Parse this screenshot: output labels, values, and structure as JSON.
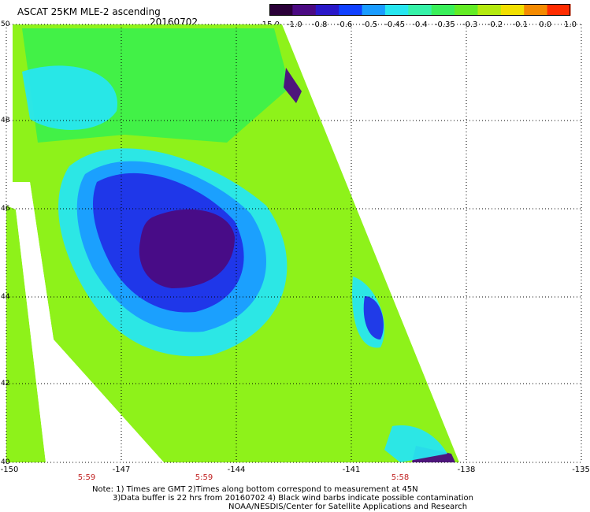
{
  "header": {
    "title": "ASCAT 25KM MLE-2 ascending",
    "date": "20160702"
  },
  "colorbar": {
    "ticks": [
      "-15.0",
      "-1.0",
      "-0.8",
      "-0.6",
      "-0.5",
      "-0.45",
      "-0.4",
      "-0.35",
      "-0.3",
      "-0.2",
      "-0.1",
      "0.0",
      "1.0"
    ],
    "colors": [
      "#2a0038",
      "#4b0a82",
      "#2a18c8",
      "#1040ff",
      "#1a9cff",
      "#27e6f0",
      "#36f2a8",
      "#3af05a",
      "#63ec25",
      "#b4ea0f",
      "#f2e000",
      "#f48a00",
      "#ff2c00"
    ]
  },
  "map": {
    "lat_labels": [
      "50",
      "48",
      "46",
      "44",
      "42",
      "40"
    ],
    "lon_labels": [
      "-150",
      "-147",
      "-144",
      "-141",
      "-138",
      "-135"
    ],
    "time_labels": [
      "5:59",
      "5:59",
      "5:58"
    ],
    "colors": {
      "background": "#ffffff",
      "green": "#3ef04a",
      "lime": "#8ef21a",
      "cyan": "#27e6f0",
      "lightblue": "#1a9cff",
      "blue": "#2032e8",
      "purple": "#4b0a82",
      "grid": "#000000"
    }
  },
  "footer": {
    "line1": "Note: 1) Times are GMT 2)Times along bottom correspond to measurement at 45N",
    "line2": "3)Data buffer is 22 hrs from 20160702 4) Black wind barbs indicate possible contamination",
    "line3": "NOAA/NESDIS/Center for Satellite Applications and Research"
  }
}
